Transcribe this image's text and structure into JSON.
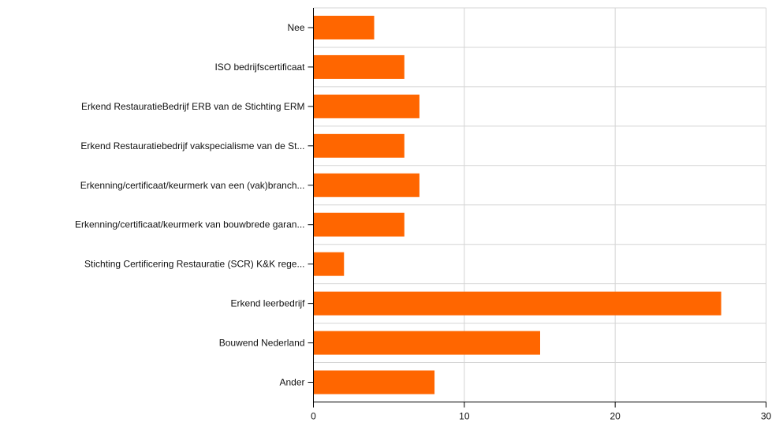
{
  "chart_data": {
    "type": "bar",
    "orientation": "horizontal",
    "categories": [
      "Nee",
      "ISO bedrijfscertificaat",
      "Erkend RestauratieBedrijf ERB van de Stichting ERM",
      "Erkend Restauratiebedrijf vakspecialisme van de St...",
      "Erkenning/certificaat/keurmerk van een (vak)branch...",
      "Erkenning/certificaat/keurmerk van bouwbrede garan...",
      "Stichting Certificering Restauratie (SCR) K&K rege...",
      "Erkend leerbedrijf",
      "Bouwend Nederland",
      "Ander"
    ],
    "values": [
      4,
      6,
      7,
      6,
      7,
      6,
      2,
      27,
      15,
      8
    ],
    "xlim": [
      0,
      30
    ],
    "xticks": [
      0,
      10,
      20,
      30
    ],
    "grid": true,
    "bar_color": "#ff6600",
    "title": "",
    "xlabel": "",
    "ylabel": ""
  }
}
